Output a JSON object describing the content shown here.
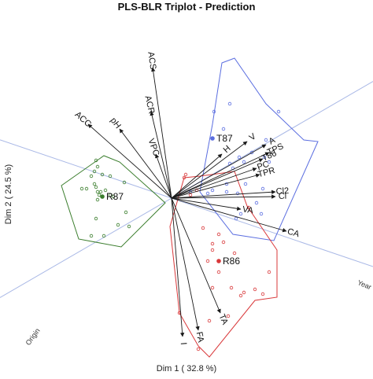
{
  "chart_data": {
    "type": "scatter",
    "title": "PLS-BLR Triplot - Prediction",
    "xlabel": "Dim 1 ( 32.8 %)",
    "ylabel": "Dim 2 ( 24.5 %)",
    "xlim": [
      -1.1,
      1.05
    ],
    "ylim": [
      -1.05,
      1.05
    ],
    "grid": false,
    "axis_lines": {
      "origin_label": "Origin",
      "year_label": "Year"
    },
    "colors": {
      "R87": "#3a7d2c",
      "T87": "#5b6ee0",
      "R86": "#d9383a",
      "axis": "#a9b8e6",
      "arrow": "#1a1a1a"
    },
    "variables": [
      {
        "name": "ACS",
        "x": -0.12,
        "y": 0.83
      },
      {
        "name": "ACC",
        "x": -0.53,
        "y": 0.47
      },
      {
        "name": "pH",
        "x": -0.33,
        "y": 0.44
      },
      {
        "name": "ACR",
        "x": -0.13,
        "y": 0.55
      },
      {
        "name": "VPC",
        "x": -0.1,
        "y": 0.28
      },
      {
        "name": "H",
        "x": 0.32,
        "y": 0.28
      },
      {
        "name": "V",
        "x": 0.48,
        "y": 0.36
      },
      {
        "name": "A",
        "x": 0.6,
        "y": 0.34
      },
      {
        "name": "TPS",
        "x": 0.62,
        "y": 0.29
      },
      {
        "name": "T86",
        "x": 0.58,
        "y": 0.25
      },
      {
        "name": "PC",
        "x": 0.54,
        "y": 0.19
      },
      {
        "name": "TPR",
        "x": 0.56,
        "y": 0.15
      },
      {
        "name": "Cl2",
        "x": 0.66,
        "y": 0.04
      },
      {
        "name": "Cl",
        "x": 0.66,
        "y": 0.01
      },
      {
        "name": "VA",
        "x": 0.44,
        "y": -0.07
      },
      {
        "name": "CA",
        "x": 0.73,
        "y": -0.21
      },
      {
        "name": "TA",
        "x": 0.31,
        "y": -0.73
      },
      {
        "name": "FA",
        "x": 0.17,
        "y": -0.84
      },
      {
        "name": "I",
        "x": 0.07,
        "y": -0.88
      }
    ],
    "groups": [
      {
        "name": "R87",
        "centroid": [
          -0.44,
          0.01
        ],
        "hull": [
          [
            -0.7,
            0.08
          ],
          [
            -0.43,
            0.27
          ],
          [
            -0.33,
            0.23
          ],
          [
            -0.04,
            -0.03
          ],
          [
            -0.32,
            -0.31
          ],
          [
            -0.59,
            -0.26
          ]
        ],
        "points": [
          [
            -0.54,
            0.06
          ],
          [
            -0.57,
            0.06
          ],
          [
            -0.51,
            0.14
          ],
          [
            -0.49,
            0.17
          ],
          [
            -0.47,
            0.04
          ],
          [
            -0.46,
            0.02
          ],
          [
            -0.45,
            0.04
          ],
          [
            -0.42,
            0.05
          ],
          [
            -0.47,
            -0.01
          ],
          [
            -0.48,
            0.07
          ],
          [
            -0.39,
            0.14
          ],
          [
            -0.3,
            0.1
          ],
          [
            -0.39,
            0.02
          ],
          [
            -0.29,
            -0.09
          ],
          [
            -0.27,
            -0.18
          ],
          [
            -0.34,
            -0.17
          ],
          [
            -0.43,
            -0.24
          ],
          [
            -0.51,
            -0.24
          ],
          [
            -0.48,
            -0.13
          ],
          [
            -0.49,
            0.09
          ],
          [
            -0.48,
            0.24
          ],
          [
            -0.47,
            0.2
          ],
          [
            -0.44,
            0.15
          ],
          [
            -0.37,
            0.01
          ]
        ]
      },
      {
        "name": "T87",
        "centroid": [
          0.26,
          0.38
        ],
        "hull": [
          [
            0.32,
            0.86
          ],
          [
            0.4,
            0.89
          ],
          [
            0.6,
            0.6
          ],
          [
            0.84,
            0.37
          ],
          [
            0.93,
            0.36
          ],
          [
            0.65,
            -0.27
          ],
          [
            0.39,
            -0.23
          ],
          [
            0.18,
            0.04
          ],
          [
            0.26,
            0.47
          ]
        ],
        "points": [
          [
            0.37,
            0.6
          ],
          [
            0.68,
            0.55
          ],
          [
            0.6,
            0.37
          ],
          [
            0.59,
            0.26
          ],
          [
            0.62,
            0.23
          ],
          [
            0.51,
            0.29
          ],
          [
            0.43,
            0.26
          ],
          [
            0.46,
            0.23
          ],
          [
            0.39,
            0.19
          ],
          [
            0.37,
            0.22
          ],
          [
            0.47,
            0.09
          ],
          [
            0.42,
            0.03
          ],
          [
            0.35,
            0.09
          ],
          [
            0.35,
            0.04
          ],
          [
            0.23,
            0.03
          ],
          [
            0.26,
            0.05
          ],
          [
            0.12,
            0.04
          ],
          [
            0.54,
            -0.03
          ],
          [
            0.57,
            -0.1
          ],
          [
            0.44,
            -0.1
          ],
          [
            0.41,
            -0.13
          ],
          [
            0.58,
            0.06
          ],
          [
            0.33,
            0.44
          ],
          [
            0.27,
            0.55
          ]
        ]
      },
      {
        "name": "R86",
        "centroid": [
          0.3,
          -0.4
        ],
        "hull": [
          [
            0.08,
            0.13
          ],
          [
            0.18,
            0.14
          ],
          [
            0.4,
            0.17
          ],
          [
            0.48,
            -0.05
          ],
          [
            0.67,
            -0.33
          ],
          [
            0.67,
            -0.63
          ],
          [
            0.53,
            -0.65
          ],
          [
            0.24,
            -1.01
          ],
          [
            0.17,
            -0.94
          ],
          [
            0.05,
            -0.73
          ],
          [
            -0.01,
            -0.18
          ]
        ],
        "points": [
          [
            0.08,
            0.13
          ],
          [
            0.09,
            0.15
          ],
          [
            0.12,
            0.02
          ],
          [
            0.16,
            0.05
          ],
          [
            0.2,
            -0.19
          ],
          [
            0.26,
            -0.33
          ],
          [
            0.26,
            -0.29
          ],
          [
            0.3,
            -0.23
          ],
          [
            0.33,
            -0.28
          ],
          [
            0.23,
            -0.4
          ],
          [
            0.3,
            -0.47
          ],
          [
            0.38,
            -0.57
          ],
          [
            0.44,
            -0.62
          ],
          [
            0.36,
            -0.75
          ],
          [
            0.24,
            -0.78
          ],
          [
            0.17,
            -0.96
          ],
          [
            0.05,
            -0.73
          ],
          [
            0.49,
            -0.06
          ],
          [
            0.53,
            -0.58
          ],
          [
            0.58,
            -0.61
          ],
          [
            0.62,
            -0.47
          ],
          [
            0.46,
            -0.6
          ],
          [
            0.26,
            -0.57
          ],
          [
            0.4,
            -0.35
          ]
        ]
      }
    ]
  }
}
